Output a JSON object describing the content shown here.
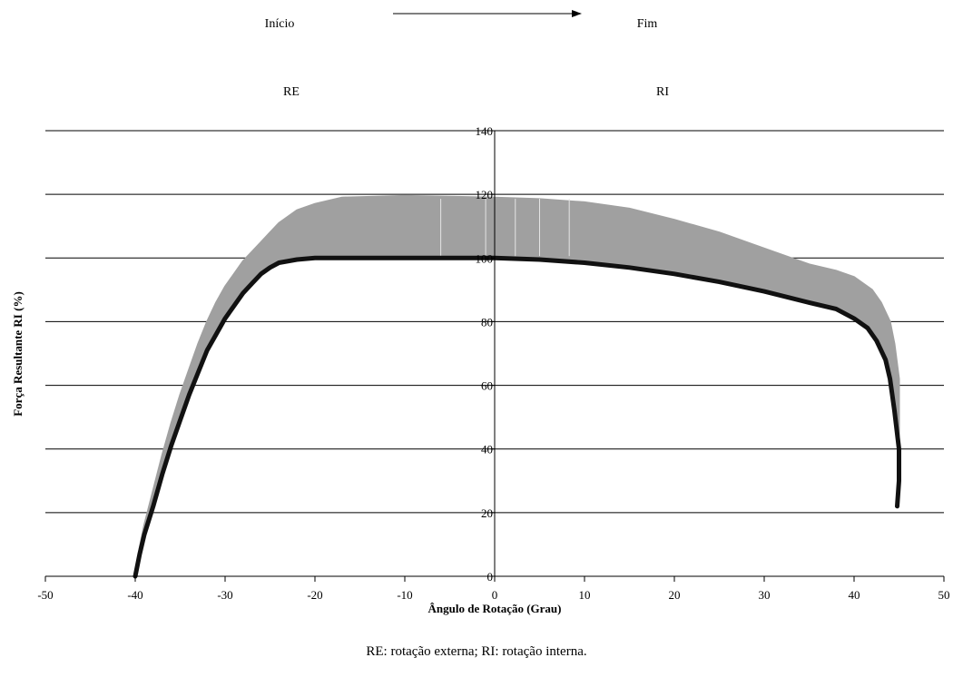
{
  "chart_data": {
    "type": "area",
    "header": {
      "start_label": "Início",
      "end_label": "Fim",
      "left_region": "RE",
      "right_region": "RI"
    },
    "xlabel": "Ângulo de Rotação (Grau)",
    "ylabel": "Força Resultante RI (%)",
    "caption": "RE: rotação externa; RI: rotação interna.",
    "xlim": [
      -50,
      50
    ],
    "ylim": [
      0,
      140
    ],
    "x_ticks": [
      -50,
      -40,
      -30,
      -20,
      -10,
      0,
      10,
      20,
      30,
      40,
      50
    ],
    "y_ticks": [
      0,
      20,
      40,
      60,
      80,
      100,
      120,
      140
    ],
    "grid": "horizontal",
    "colors": {
      "band": "#a0a0a0",
      "lower_curve": "#111111",
      "grid": "#000000"
    },
    "series": [
      {
        "role": "lower",
        "points": [
          [
            -40,
            0
          ],
          [
            -39.5,
            7
          ],
          [
            -39,
            13
          ],
          [
            -38,
            22
          ],
          [
            -37,
            32
          ],
          [
            -36,
            41
          ],
          [
            -35,
            49
          ],
          [
            -34,
            57
          ],
          [
            -33,
            64
          ],
          [
            -32,
            71
          ],
          [
            -31,
            76
          ],
          [
            -30,
            81
          ],
          [
            -29,
            85
          ],
          [
            -28,
            89
          ],
          [
            -27,
            92
          ],
          [
            -26,
            95
          ],
          [
            -25,
            97
          ],
          [
            -24,
            98.5
          ],
          [
            -22,
            99.5
          ],
          [
            -20,
            100
          ],
          [
            -10,
            100
          ],
          [
            0,
            100
          ],
          [
            5,
            99.5
          ],
          [
            10,
            98.5
          ],
          [
            15,
            97
          ],
          [
            20,
            95
          ],
          [
            25,
            92.5
          ],
          [
            30,
            89.5
          ],
          [
            35,
            86
          ],
          [
            38,
            84
          ],
          [
            40,
            81
          ],
          [
            41.5,
            78
          ],
          [
            42.5,
            74
          ],
          [
            43.5,
            68
          ],
          [
            44,
            62
          ],
          [
            44.5,
            52
          ],
          [
            45,
            40
          ],
          [
            45,
            30
          ],
          [
            44.8,
            22
          ]
        ]
      },
      {
        "role": "upper",
        "points": [
          [
            -40,
            0
          ],
          [
            -39.5,
            9
          ],
          [
            -39,
            16
          ],
          [
            -38,
            27
          ],
          [
            -37,
            38
          ],
          [
            -36,
            48
          ],
          [
            -35,
            57
          ],
          [
            -34,
            65
          ],
          [
            -33,
            73
          ],
          [
            -32,
            80
          ],
          [
            -31,
            86
          ],
          [
            -30,
            91
          ],
          [
            -29,
            95
          ],
          [
            -28,
            99
          ],
          [
            -27,
            102
          ],
          [
            -26,
            105
          ],
          [
            -25,
            108
          ],
          [
            -24,
            111
          ],
          [
            -22,
            115
          ],
          [
            -20,
            117
          ],
          [
            -17,
            119
          ],
          [
            -10,
            119.5
          ],
          [
            0,
            119
          ],
          [
            5,
            118.5
          ],
          [
            10,
            117.5
          ],
          [
            15,
            115.5
          ],
          [
            20,
            112
          ],
          [
            25,
            108
          ],
          [
            30,
            103
          ],
          [
            35,
            98
          ],
          [
            38,
            96
          ],
          [
            40,
            94
          ],
          [
            42,
            90
          ],
          [
            43,
            86
          ],
          [
            44,
            80
          ],
          [
            44.5,
            73
          ],
          [
            45,
            62
          ],
          [
            45,
            45
          ],
          [
            45,
            30
          ],
          [
            44.8,
            22
          ]
        ]
      }
    ],
    "highlight_lines_x": [
      -6,
      -1,
      2.3,
      5,
      8.3
    ]
  }
}
